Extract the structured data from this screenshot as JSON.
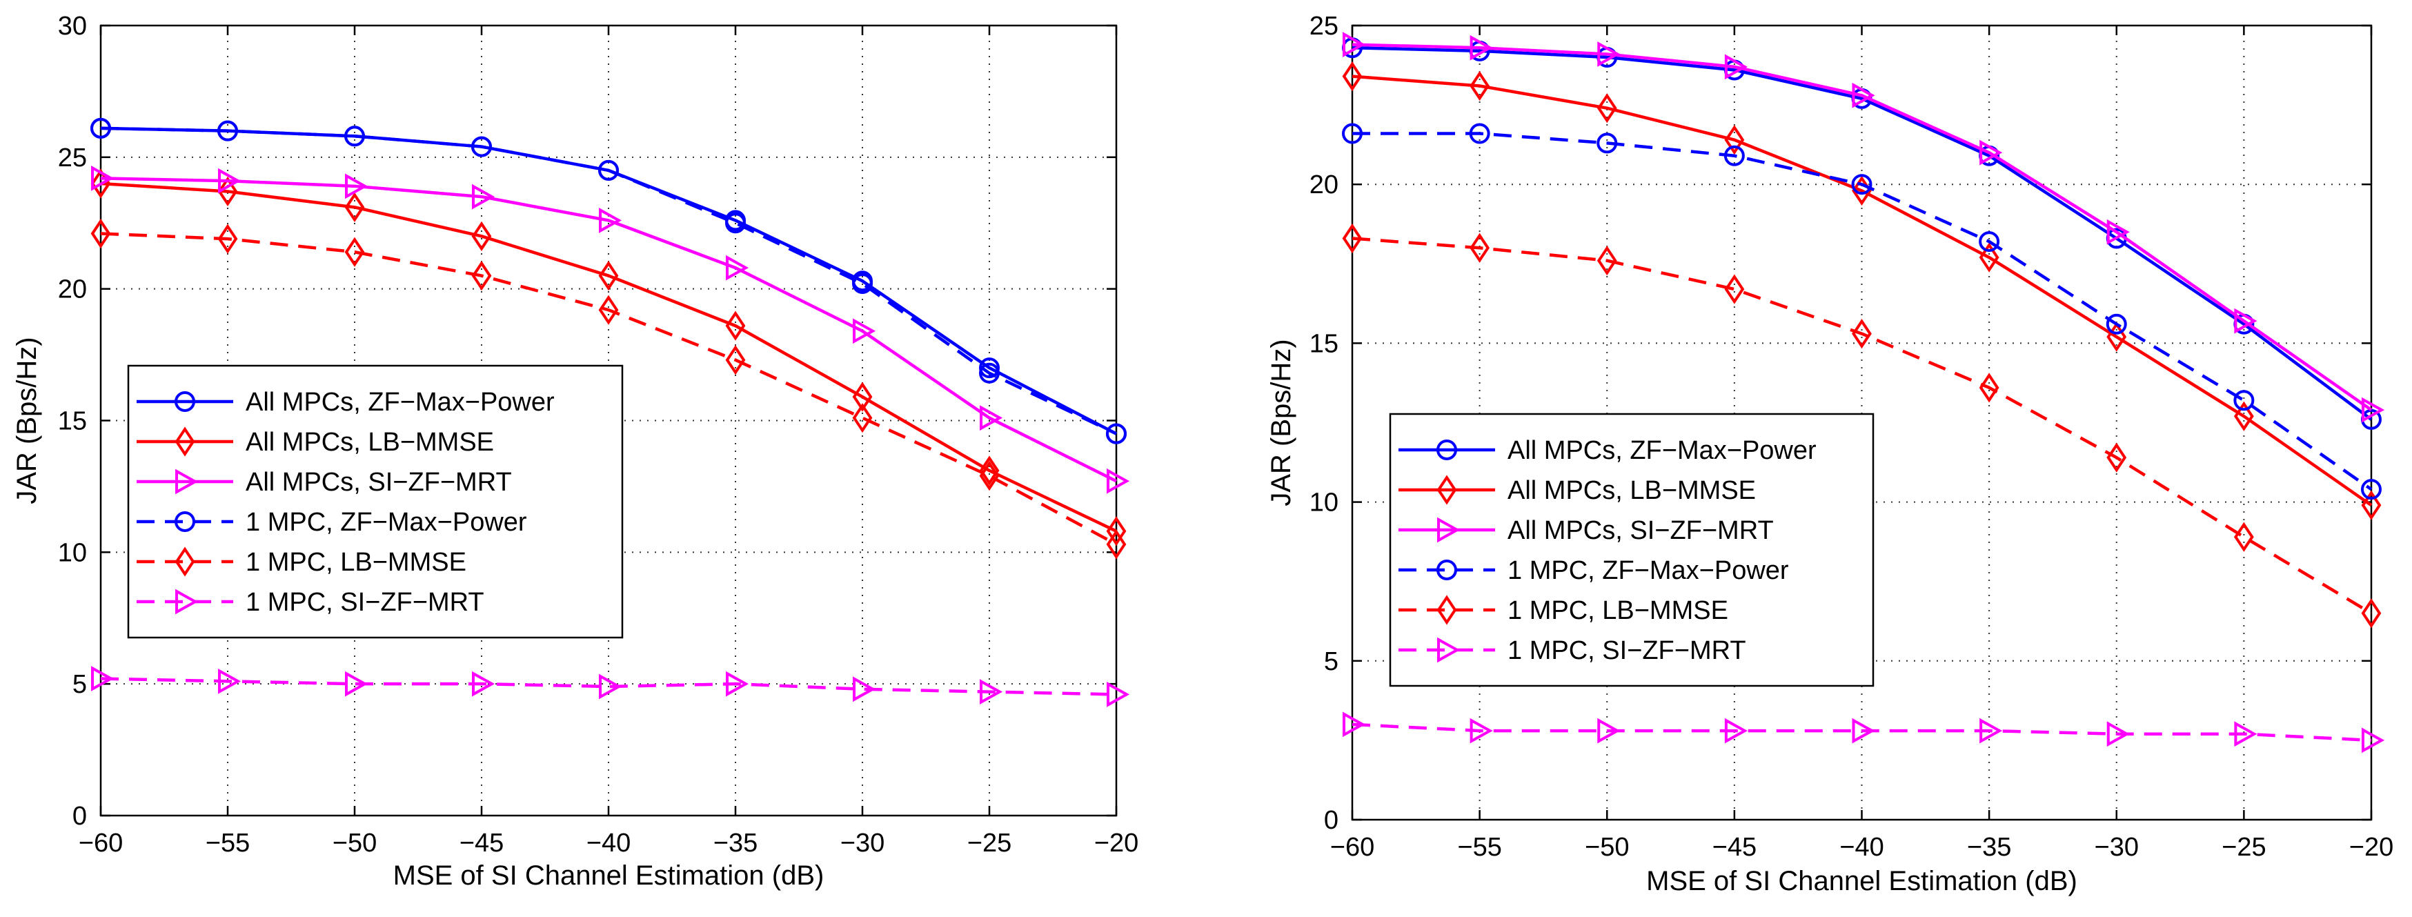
{
  "chart_data": [
    {
      "type": "line",
      "title": "",
      "xlabel": "MSE of SI Channel Estimation (dB)",
      "ylabel": "JAR (Bps/Hz)",
      "xlim": [
        -60,
        -20
      ],
      "ylim": [
        0,
        30
      ],
      "xticks": [
        "−60",
        "−55",
        "−50",
        "−45",
        "−40",
        "−35",
        "−30",
        "−25",
        "−20"
      ],
      "yticks": [
        "0",
        "5",
        "10",
        "15",
        "20",
        "25",
        "30"
      ],
      "grid": true,
      "legend_position": "center-left",
      "x": [
        -60,
        -55,
        -50,
        -45,
        -40,
        -35,
        -30,
        -25,
        -20
      ],
      "series": [
        {
          "name": "All MPCs, ZF−Max−Power",
          "color": "#0000ff",
          "dash": "solid",
          "marker": "circle",
          "values": [
            26.1,
            26.0,
            25.8,
            25.4,
            24.5,
            22.6,
            20.3,
            17.0,
            14.5
          ]
        },
        {
          "name": "All MPCs, LB−MMSE",
          "color": "#ff0000",
          "dash": "solid",
          "marker": "diamond",
          "values": [
            24.0,
            23.7,
            23.1,
            22.0,
            20.5,
            18.6,
            15.9,
            13.1,
            10.8
          ]
        },
        {
          "name": "All MPCs, SI−ZF−MRT",
          "color": "#ff00ff",
          "dash": "solid",
          "marker": "triangle-right",
          "values": [
            24.2,
            24.1,
            23.9,
            23.5,
            22.6,
            20.8,
            18.4,
            15.1,
            12.7
          ]
        },
        {
          "name": "1 MPC, ZF−Max−Power",
          "color": "#0000ff",
          "dash": "dashed",
          "marker": "circle",
          "values": [
            26.1,
            26.0,
            25.8,
            25.4,
            24.5,
            22.5,
            20.2,
            16.8,
            14.5
          ]
        },
        {
          "name": "1 MPC, LB−MMSE",
          "color": "#ff0000",
          "dash": "dashed",
          "marker": "diamond",
          "values": [
            22.1,
            21.9,
            21.4,
            20.5,
            19.2,
            17.3,
            15.1,
            12.9,
            10.3
          ]
        },
        {
          "name": "1 MPC, SI−ZF−MRT",
          "color": "#ff00ff",
          "dash": "dashed",
          "marker": "triangle-right",
          "values": [
            5.2,
            5.1,
            5.0,
            5.0,
            4.9,
            5.0,
            4.8,
            4.7,
            4.6
          ]
        }
      ]
    },
    {
      "type": "line",
      "title": "",
      "xlabel": "MSE of SI Channel Estimation (dB)",
      "ylabel": "JAR (Bps/Hz)",
      "xlim": [
        -60,
        -20
      ],
      "ylim": [
        0,
        25
      ],
      "xticks": [
        "−60",
        "−55",
        "−50",
        "−45",
        "−40",
        "−35",
        "−30",
        "−25",
        "−20"
      ],
      "yticks": [
        "0",
        "5",
        "10",
        "15",
        "20",
        "25"
      ],
      "grid": true,
      "legend_position": "lower-left",
      "x": [
        -60,
        -55,
        -50,
        -45,
        -40,
        -35,
        -30,
        -25,
        -20
      ],
      "series": [
        {
          "name": "All MPCs, ZF−Max−Power",
          "color": "#0000ff",
          "dash": "solid",
          "marker": "circle",
          "values": [
            24.3,
            24.2,
            24.0,
            23.6,
            22.7,
            20.9,
            18.3,
            15.6,
            12.6
          ]
        },
        {
          "name": "All MPCs, LB−MMSE",
          "color": "#ff0000",
          "dash": "solid",
          "marker": "diamond",
          "values": [
            23.4,
            23.1,
            22.4,
            21.4,
            19.8,
            17.7,
            15.2,
            12.7,
            9.9
          ]
        },
        {
          "name": "All MPCs, SI−ZF−MRT",
          "color": "#ff00ff",
          "dash": "solid",
          "marker": "triangle-right",
          "values": [
            24.4,
            24.3,
            24.1,
            23.7,
            22.8,
            21.0,
            18.5,
            15.7,
            12.9
          ]
        },
        {
          "name": "1 MPC, ZF−Max−Power",
          "color": "#0000ff",
          "dash": "dashed",
          "marker": "circle",
          "values": [
            21.6,
            21.6,
            21.3,
            20.9,
            20.0,
            18.2,
            15.6,
            13.2,
            10.4
          ]
        },
        {
          "name": "1 MPC, LB−MMSE",
          "color": "#ff0000",
          "dash": "dashed",
          "marker": "diamond",
          "values": [
            18.3,
            18.0,
            17.6,
            16.7,
            15.3,
            13.6,
            11.4,
            8.9,
            6.5
          ]
        },
        {
          "name": "1 MPC, SI−ZF−MRT",
          "color": "#ff00ff",
          "dash": "dashed",
          "marker": "triangle-right",
          "values": [
            3.0,
            2.8,
            2.8,
            2.8,
            2.8,
            2.8,
            2.7,
            2.7,
            2.5
          ]
        }
      ]
    }
  ]
}
